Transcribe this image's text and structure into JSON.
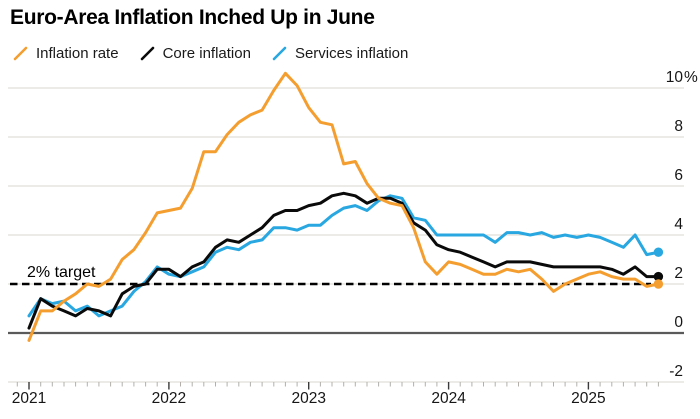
{
  "title": "Euro-Area Inflation Inched Up in June",
  "legend": [
    {
      "label": "Inflation rate",
      "color": "#F59E30"
    },
    {
      "label": "Core inflation",
      "color": "#0A0A0A"
    },
    {
      "label": "Services inflation",
      "color": "#28A7E0"
    }
  ],
  "colors": {
    "background": "#FFFFFF",
    "gridline": "#DAD7D1",
    "zero_line": "#5A5A5A",
    "target_line": "#000000",
    "axis_tick_minor": "#B3B0AB",
    "axis_tick_major": "#3A3A3A",
    "label_text": "#161616"
  },
  "chart_data": {
    "type": "line",
    "title": "Euro-Area Inflation Inched Up in June",
    "x_start": "2020-12",
    "x_end": "2025-06",
    "x_interval": "monthly",
    "grid": true,
    "legend_position": "top",
    "ylim": [
      -2,
      10
    ],
    "y_axis": {
      "unit": "%",
      "ticks": [
        {
          "value": 10,
          "label": "10",
          "suffix": "%"
        },
        {
          "value": 8,
          "label": "8"
        },
        {
          "value": 6,
          "label": "6"
        },
        {
          "value": 4,
          "label": "4"
        },
        {
          "value": 2,
          "label": "2"
        },
        {
          "value": 0,
          "label": "0"
        },
        {
          "value": -2,
          "label": "-2"
        }
      ]
    },
    "x_axis": {
      "year_labels": [
        "2021",
        "2022",
        "2023",
        "2024",
        "2025"
      ]
    },
    "target_line": {
      "value": 2,
      "label": "2% target"
    },
    "series": [
      {
        "id": "inflation-rate",
        "name": "Inflation rate",
        "color": "#F59E30",
        "values": [
          -0.3,
          0.9,
          0.9,
          1.3,
          1.6,
          2.0,
          1.9,
          2.2,
          3.0,
          3.4,
          4.1,
          4.9,
          5.0,
          5.1,
          5.9,
          7.4,
          7.4,
          8.1,
          8.6,
          8.9,
          9.1,
          9.9,
          10.6,
          10.1,
          9.2,
          8.6,
          8.5,
          6.9,
          7.0,
          6.1,
          5.5,
          5.3,
          5.2,
          4.3,
          2.9,
          2.4,
          2.9,
          2.8,
          2.6,
          2.4,
          2.4,
          2.6,
          2.5,
          2.6,
          2.2,
          1.7,
          2.0,
          2.2,
          2.4,
          2.5,
          2.3,
          2.2,
          2.2,
          1.9,
          2.0
        ]
      },
      {
        "id": "core-inflation",
        "name": "Core inflation",
        "color": "#0A0A0A",
        "values": [
          0.2,
          1.4,
          1.1,
          0.9,
          0.7,
          1.0,
          0.9,
          0.7,
          1.6,
          1.9,
          2.0,
          2.6,
          2.6,
          2.3,
          2.7,
          2.9,
          3.5,
          3.8,
          3.7,
          4.0,
          4.3,
          4.8,
          5.0,
          5.0,
          5.2,
          5.3,
          5.6,
          5.7,
          5.6,
          5.3,
          5.5,
          5.5,
          5.3,
          4.5,
          4.2,
          3.6,
          3.4,
          3.3,
          3.1,
          2.9,
          2.7,
          2.9,
          2.9,
          2.9,
          2.8,
          2.7,
          2.7,
          2.7,
          2.7,
          2.7,
          2.6,
          2.4,
          2.7,
          2.3,
          2.3
        ]
      },
      {
        "id": "services-inflation",
        "name": "Services inflation",
        "color": "#28A7E0",
        "values": [
          0.7,
          1.4,
          1.2,
          1.3,
          0.9,
          1.1,
          0.7,
          0.9,
          1.1,
          1.7,
          2.1,
          2.7,
          2.4,
          2.3,
          2.5,
          2.7,
          3.3,
          3.5,
          3.4,
          3.7,
          3.8,
          4.3,
          4.3,
          4.2,
          4.4,
          4.4,
          4.8,
          5.1,
          5.2,
          5.0,
          5.4,
          5.6,
          5.5,
          4.7,
          4.6,
          4.0,
          4.0,
          4.0,
          4.0,
          4.0,
          3.7,
          4.1,
          4.1,
          4.0,
          4.1,
          3.9,
          4.0,
          3.9,
          4.0,
          3.9,
          3.7,
          3.5,
          4.0,
          3.2,
          3.3
        ]
      }
    ]
  }
}
